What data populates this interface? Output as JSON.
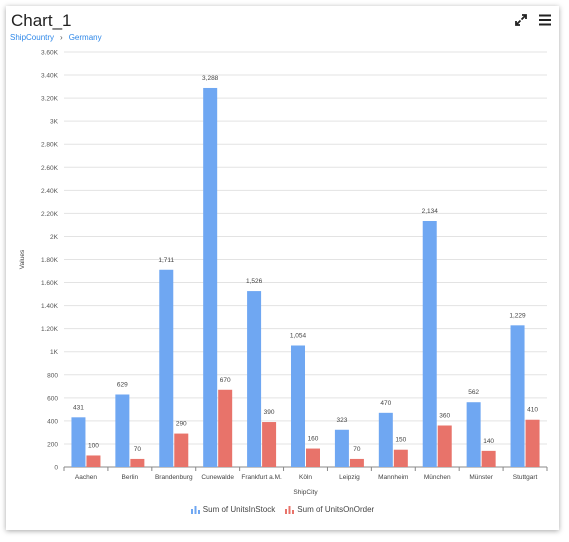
{
  "widget": {
    "title": "Chart_1",
    "breadcrumb": [
      "ShipCountry",
      "Germany"
    ],
    "breadcrumb_separator": "›",
    "toolbar": {
      "expand_icon": "expand-icon",
      "menu_icon": "hamburger-menu-icon"
    }
  },
  "chart_data": {
    "type": "bar",
    "xlabel": "ShipCity",
    "ylabel": "Values",
    "ylim": [
      0,
      3600
    ],
    "yticks": [
      0,
      200,
      400,
      600,
      800,
      1000,
      1200,
      1400,
      1600,
      1800,
      2000,
      2200,
      2400,
      2600,
      2800,
      3000,
      3200,
      3400,
      3600
    ],
    "ytick_labels": [
      "0",
      "200",
      "400",
      "600",
      "800",
      "1K",
      "1.20K",
      "1.40K",
      "1.60K",
      "1.80K",
      "2K",
      "2.20K",
      "2.40K",
      "2.60K",
      "2.80K",
      "3K",
      "3.20K",
      "3.40K",
      "3.60K"
    ],
    "categories": [
      "Aachen",
      "Berlin",
      "Brandenburg",
      "Cunewalde",
      "Frankfurt a.M.",
      "Köln",
      "Leipzig",
      "Mannheim",
      "München",
      "Münster",
      "Stuttgart"
    ],
    "series": [
      {
        "name": "Sum of UnitsInStock",
        "color": "#6fa7f2",
        "values": [
          431,
          629,
          1711,
          3288,
          1526,
          1054,
          323,
          470,
          2134,
          562,
          1229
        ],
        "labels": [
          "431",
          "629",
          "1,711",
          "3,288",
          "1,526",
          "1,054",
          "323",
          "470",
          "2,134",
          "562",
          "1,229"
        ]
      },
      {
        "name": "Sum of UnitsOnOrder",
        "color": "#e8736a",
        "values": [
          100,
          70,
          290,
          670,
          390,
          160,
          70,
          150,
          360,
          140,
          410
        ],
        "labels": [
          "100",
          "70",
          "290",
          "670",
          "390",
          "160",
          "70",
          "150",
          "360",
          "140",
          "410"
        ]
      }
    ],
    "grid": true,
    "legend_position": "bottom-center"
  }
}
